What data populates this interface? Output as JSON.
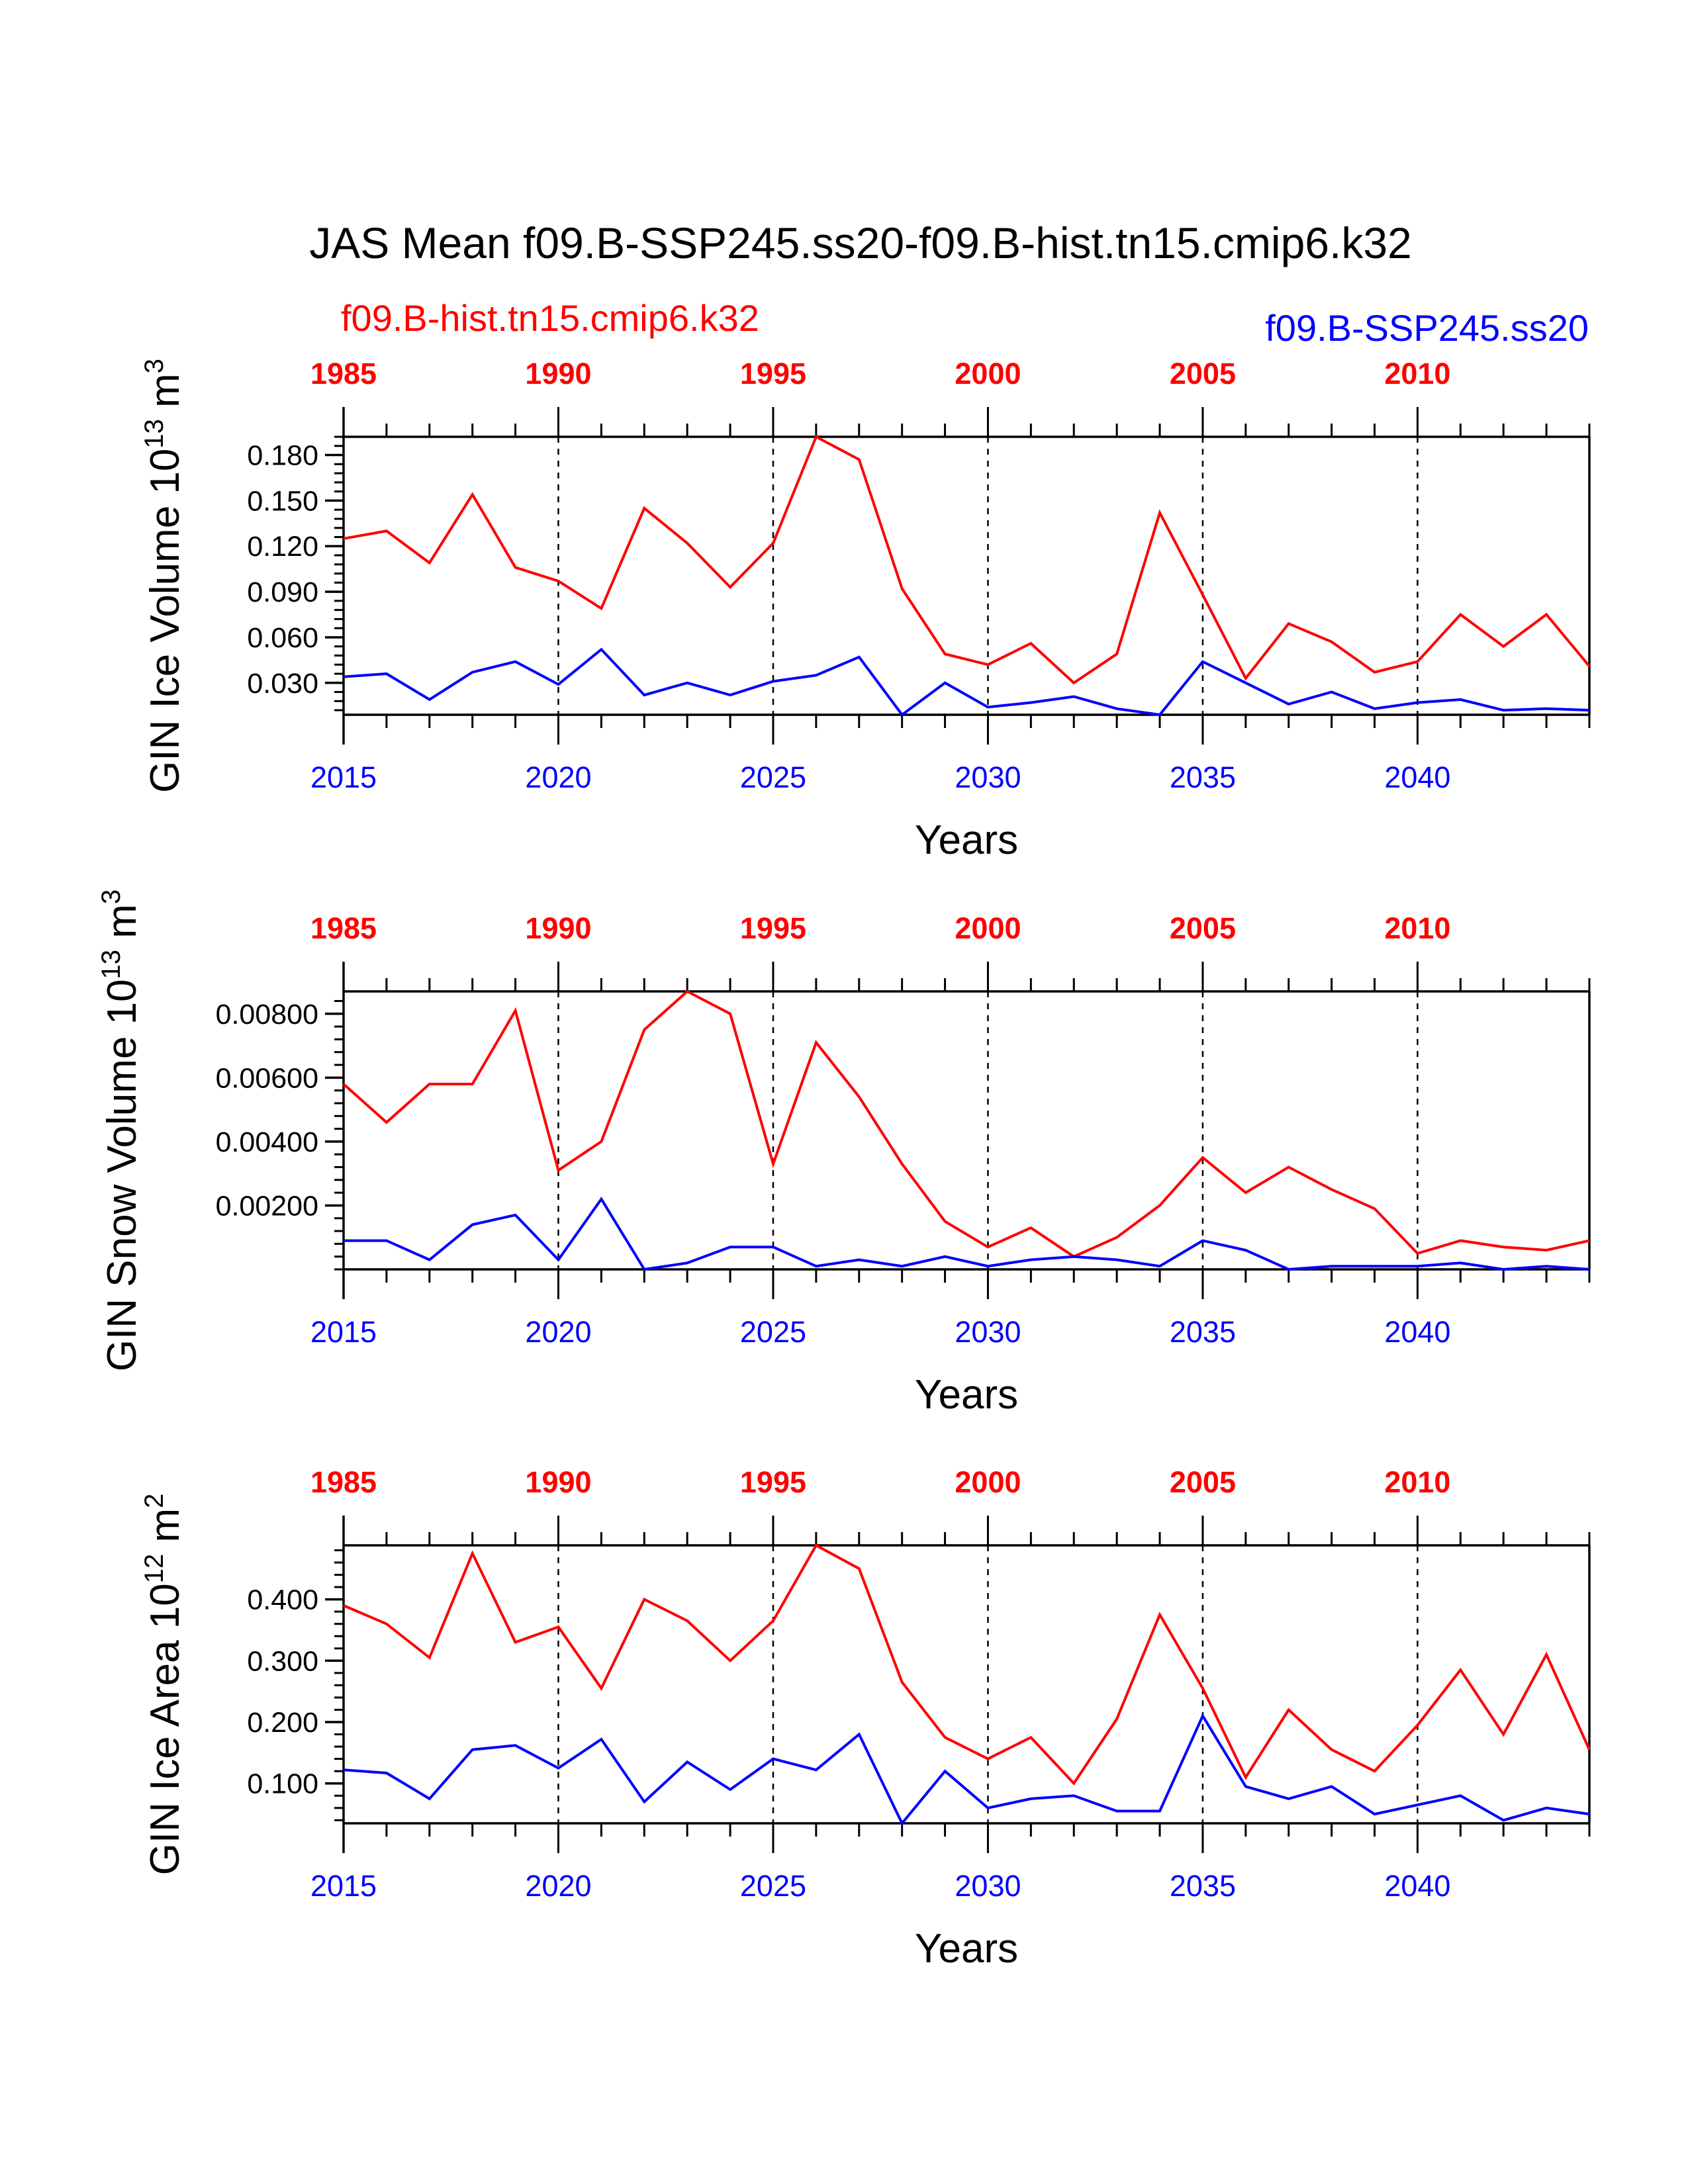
{
  "title": "JAS Mean f09.B-SSP245.ss20-f09.B-hist.tn15.cmip6.k32",
  "colors": {
    "hist": "#ff0000",
    "ssp": "#0000ff",
    "axis": "#000000"
  },
  "chart_data": [
    {
      "type": "line",
      "ylabel": "GIN Ice Volume 10^13 m^3",
      "ylabel_parts": {
        "text": "GIN Ice Volume 10",
        "exp": "13",
        "unit": " m",
        "unit_exp": "3"
      },
      "xlabel": "Years",
      "ylim": [
        0.009,
        0.192
      ],
      "yticks": [
        0.03,
        0.06,
        0.09,
        0.12,
        0.15,
        0.18
      ],
      "ytick_labels": [
        "0.030",
        "0.060",
        "0.090",
        "0.120",
        "0.150",
        "0.180"
      ],
      "yminor_step": 0.006,
      "grid": "vertical dashed at labeled years",
      "series": [
        {
          "name": "f09.B-hist.tn15.cmip6.k32",
          "x_axis": "top",
          "x": [
            1985,
            1986,
            1987,
            1988,
            1989,
            1990,
            1991,
            1992,
            1993,
            1994,
            1995,
            1996,
            1997,
            1998,
            1999,
            2000,
            2001,
            2002,
            2003,
            2004,
            2005,
            2006,
            2007,
            2008,
            2009,
            2010,
            2011,
            2012,
            2013,
            2014
          ],
          "values": [
            0.125,
            0.13,
            0.109,
            0.154,
            0.106,
            0.097,
            0.079,
            0.145,
            0.122,
            0.093,
            0.122,
            0.192,
            0.177,
            0.092,
            0.049,
            0.042,
            0.056,
            0.03,
            0.049,
            0.142,
            0.088,
            0.033,
            0.069,
            0.057,
            0.037,
            0.044,
            0.075,
            0.054,
            0.075,
            0.041
          ]
        },
        {
          "name": "f09.B-SSP245.ss20",
          "x_axis": "bottom",
          "x": [
            2015,
            2016,
            2017,
            2018,
            2019,
            2020,
            2021,
            2022,
            2023,
            2024,
            2025,
            2026,
            2027,
            2028,
            2029,
            2030,
            2031,
            2032,
            2033,
            2034,
            2035,
            2036,
            2037,
            2038,
            2039,
            2040,
            2041,
            2042,
            2043,
            2044
          ],
          "values": [
            0.034,
            0.036,
            0.019,
            0.037,
            0.044,
            0.029,
            0.052,
            0.022,
            0.03,
            0.022,
            0.031,
            0.035,
            0.047,
            0.009,
            0.03,
            0.014,
            0.017,
            0.021,
            0.013,
            0.009,
            0.044,
            0.03,
            0.016,
            0.024,
            0.013,
            0.017,
            0.019,
            0.012,
            0.013,
            0.012
          ]
        }
      ]
    },
    {
      "type": "line",
      "ylabel": "GIN Snow Volume 10^13 m^3",
      "ylabel_parts": {
        "text": "GIN Snow Volume 10",
        "exp": "13",
        "unit": " m",
        "unit_exp": "3"
      },
      "xlabel": "Years",
      "ylim": [
        0.0,
        0.0087
      ],
      "yticks": [
        0.002,
        0.004,
        0.006,
        0.008
      ],
      "ytick_labels": [
        "0.00200",
        "0.00400",
        "0.00600",
        "0.00800"
      ],
      "yminor_step": 0.0004,
      "grid": "vertical dashed at labeled years",
      "series": [
        {
          "name": "f09.B-hist.tn15.cmip6.k32",
          "x_axis": "top",
          "x": [
            1985,
            1986,
            1987,
            1988,
            1989,
            1990,
            1991,
            1992,
            1993,
            1994,
            1995,
            1996,
            1997,
            1998,
            1999,
            2000,
            2001,
            2002,
            2003,
            2004,
            2005,
            2006,
            2007,
            2008,
            2009,
            2010,
            2011,
            2012,
            2013,
            2014
          ],
          "values": [
            0.0058,
            0.0046,
            0.0058,
            0.0058,
            0.0081,
            0.0031,
            0.004,
            0.0075,
            0.0087,
            0.008,
            0.0033,
            0.0071,
            0.0054,
            0.0033,
            0.0015,
            0.0007,
            0.0013,
            0.0004,
            0.001,
            0.002,
            0.0035,
            0.0024,
            0.0032,
            0.0025,
            0.0019,
            0.0005,
            0.0009,
            0.0007,
            0.0006,
            0.0009
          ]
        },
        {
          "name": "f09.B-SSP245.ss20",
          "x_axis": "bottom",
          "x": [
            2015,
            2016,
            2017,
            2018,
            2019,
            2020,
            2021,
            2022,
            2023,
            2024,
            2025,
            2026,
            2027,
            2028,
            2029,
            2030,
            2031,
            2032,
            2033,
            2034,
            2035,
            2036,
            2037,
            2038,
            2039,
            2040,
            2041,
            2042,
            2043,
            2044
          ],
          "values": [
            0.0009,
            0.0009,
            0.0003,
            0.0014,
            0.0017,
            0.0003,
            0.0022,
            0.0,
            0.0002,
            0.0007,
            0.0007,
            0.0001,
            0.0003,
            0.0001,
            0.0004,
            0.0001,
            0.0003,
            0.0004,
            0.0003,
            0.0001,
            0.0009,
            0.0006,
            0.0,
            0.0001,
            0.0001,
            0.0001,
            0.0002,
            0.0,
            0.0001,
            0.0
          ]
        }
      ]
    },
    {
      "type": "line",
      "ylabel": "GIN Ice Area 10^12 m^2",
      "ylabel_parts": {
        "text": "GIN Ice Area 10",
        "exp": "12",
        "unit": " m",
        "unit_exp": "2"
      },
      "xlabel": "Years",
      "ylim": [
        0.035,
        0.488
      ],
      "yticks": [
        0.1,
        0.2,
        0.3,
        0.4
      ],
      "ytick_labels": [
        "0.100",
        "0.200",
        "0.300",
        "0.400"
      ],
      "yminor_step": 0.02,
      "grid": "vertical dashed at labeled years",
      "series": [
        {
          "name": "f09.B-hist.tn15.cmip6.k32",
          "x_axis": "top",
          "x": [
            1985,
            1986,
            1987,
            1988,
            1989,
            1990,
            1991,
            1992,
            1993,
            1994,
            1995,
            1996,
            1997,
            1998,
            1999,
            2000,
            2001,
            2002,
            2003,
            2004,
            2005,
            2006,
            2007,
            2008,
            2009,
            2010,
            2011,
            2012,
            2013,
            2014
          ],
          "values": [
            0.39,
            0.36,
            0.305,
            0.475,
            0.33,
            0.355,
            0.255,
            0.4,
            0.365,
            0.3,
            0.365,
            0.488,
            0.45,
            0.265,
            0.175,
            0.14,
            0.175,
            0.1,
            0.205,
            0.375,
            0.255,
            0.11,
            0.22,
            0.155,
            0.12,
            0.195,
            0.285,
            0.18,
            0.31,
            0.155
          ]
        },
        {
          "name": "f09.B-SSP245.ss20",
          "x_axis": "bottom",
          "x": [
            2015,
            2016,
            2017,
            2018,
            2019,
            2020,
            2021,
            2022,
            2023,
            2024,
            2025,
            2026,
            2027,
            2028,
            2029,
            2030,
            2031,
            2032,
            2033,
            2034,
            2035,
            2036,
            2037,
            2038,
            2039,
            2040,
            2041,
            2042,
            2043,
            2044
          ],
          "values": [
            0.122,
            0.117,
            0.075,
            0.155,
            0.162,
            0.125,
            0.172,
            0.07,
            0.135,
            0.09,
            0.14,
            0.122,
            0.18,
            0.035,
            0.12,
            0.06,
            0.075,
            0.08,
            0.055,
            0.055,
            0.21,
            0.095,
            0.075,
            0.095,
            0.05,
            0.065,
            0.08,
            0.04,
            0.06,
            0.05
          ]
        }
      ]
    }
  ],
  "top_axis": {
    "label_years": [
      1985,
      1990,
      1995,
      2000,
      2005,
      2010
    ],
    "labels": [
      "1985",
      "1990",
      "1995",
      "2000",
      "2005",
      "2010"
    ],
    "xlim": [
      1985,
      2014
    ]
  },
  "bottom_axis": {
    "label_years": [
      2015,
      2020,
      2025,
      2030,
      2035,
      2040
    ],
    "labels": [
      "2015",
      "2020",
      "2025",
      "2030",
      "2035",
      "2040"
    ],
    "xlim": [
      2015,
      2044
    ]
  },
  "legend": {
    "hist": "f09.B-hist.tn15.cmip6.k32",
    "ssp": "f09.B-SSP245.ss20",
    "hist_position": "top-left",
    "ssp_position": "top-right"
  }
}
